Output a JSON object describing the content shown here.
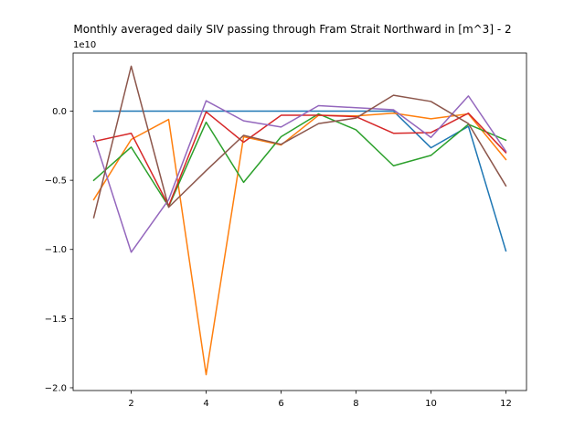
{
  "chart_data": {
    "type": "line",
    "title": "Monthly averaged daily SIV passing through Fram Strait Northward in [m^3] - 2",
    "offset_label": "1e10",
    "xlabel": "",
    "ylabel": "",
    "xlim": [
      0.45,
      12.55
    ],
    "ylim": [
      -2.02,
      0.42
    ],
    "x_ticks": [
      2,
      4,
      6,
      8,
      10,
      12
    ],
    "y_ticks": [
      0.0,
      -0.5,
      -1.0,
      -1.5,
      -2.0
    ],
    "x_tick_labels": [
      "2",
      "4",
      "6",
      "8",
      "10",
      "12"
    ],
    "y_tick_labels": [
      "0.0",
      "−0.5",
      "−1.0",
      "−1.5",
      "−2.0"
    ],
    "grid": false,
    "x": [
      1,
      2,
      3,
      4,
      5,
      6,
      7,
      8,
      9,
      10,
      11,
      12
    ],
    "series": [
      {
        "color": "#1f77b4",
        "values": [
          0.0,
          0.0,
          0.0,
          0.0,
          0.0,
          0.0,
          0.0,
          0.0,
          0.0,
          -0.265,
          -0.11,
          -1.01
        ]
      },
      {
        "color": "#ff7f0e",
        "values": [
          -0.64,
          -0.205,
          -0.06,
          -1.905,
          -0.185,
          -0.245,
          -0.03,
          -0.035,
          -0.015,
          -0.055,
          -0.02,
          -0.35
        ]
      },
      {
        "color": "#2ca02c",
        "values": [
          -0.5,
          -0.26,
          -0.69,
          -0.08,
          -0.515,
          -0.185,
          -0.02,
          -0.135,
          -0.395,
          -0.32,
          -0.095,
          -0.21
        ]
      },
      {
        "color": "#d62728",
        "values": [
          -0.22,
          -0.16,
          -0.685,
          -0.005,
          -0.225,
          -0.03,
          -0.03,
          -0.04,
          -0.16,
          -0.155,
          -0.015,
          -0.3
        ]
      },
      {
        "color": "#9467bd",
        "values": [
          -0.18,
          -1.02,
          -0.64,
          0.075,
          -0.07,
          -0.115,
          0.04,
          0.025,
          0.01,
          -0.19,
          0.11,
          -0.29
        ]
      },
      {
        "color": "#8c564b",
        "values": [
          -0.77,
          0.325,
          -0.695,
          -0.43,
          -0.175,
          -0.24,
          -0.09,
          -0.05,
          0.115,
          0.07,
          -0.09,
          -0.54
        ]
      }
    ]
  }
}
